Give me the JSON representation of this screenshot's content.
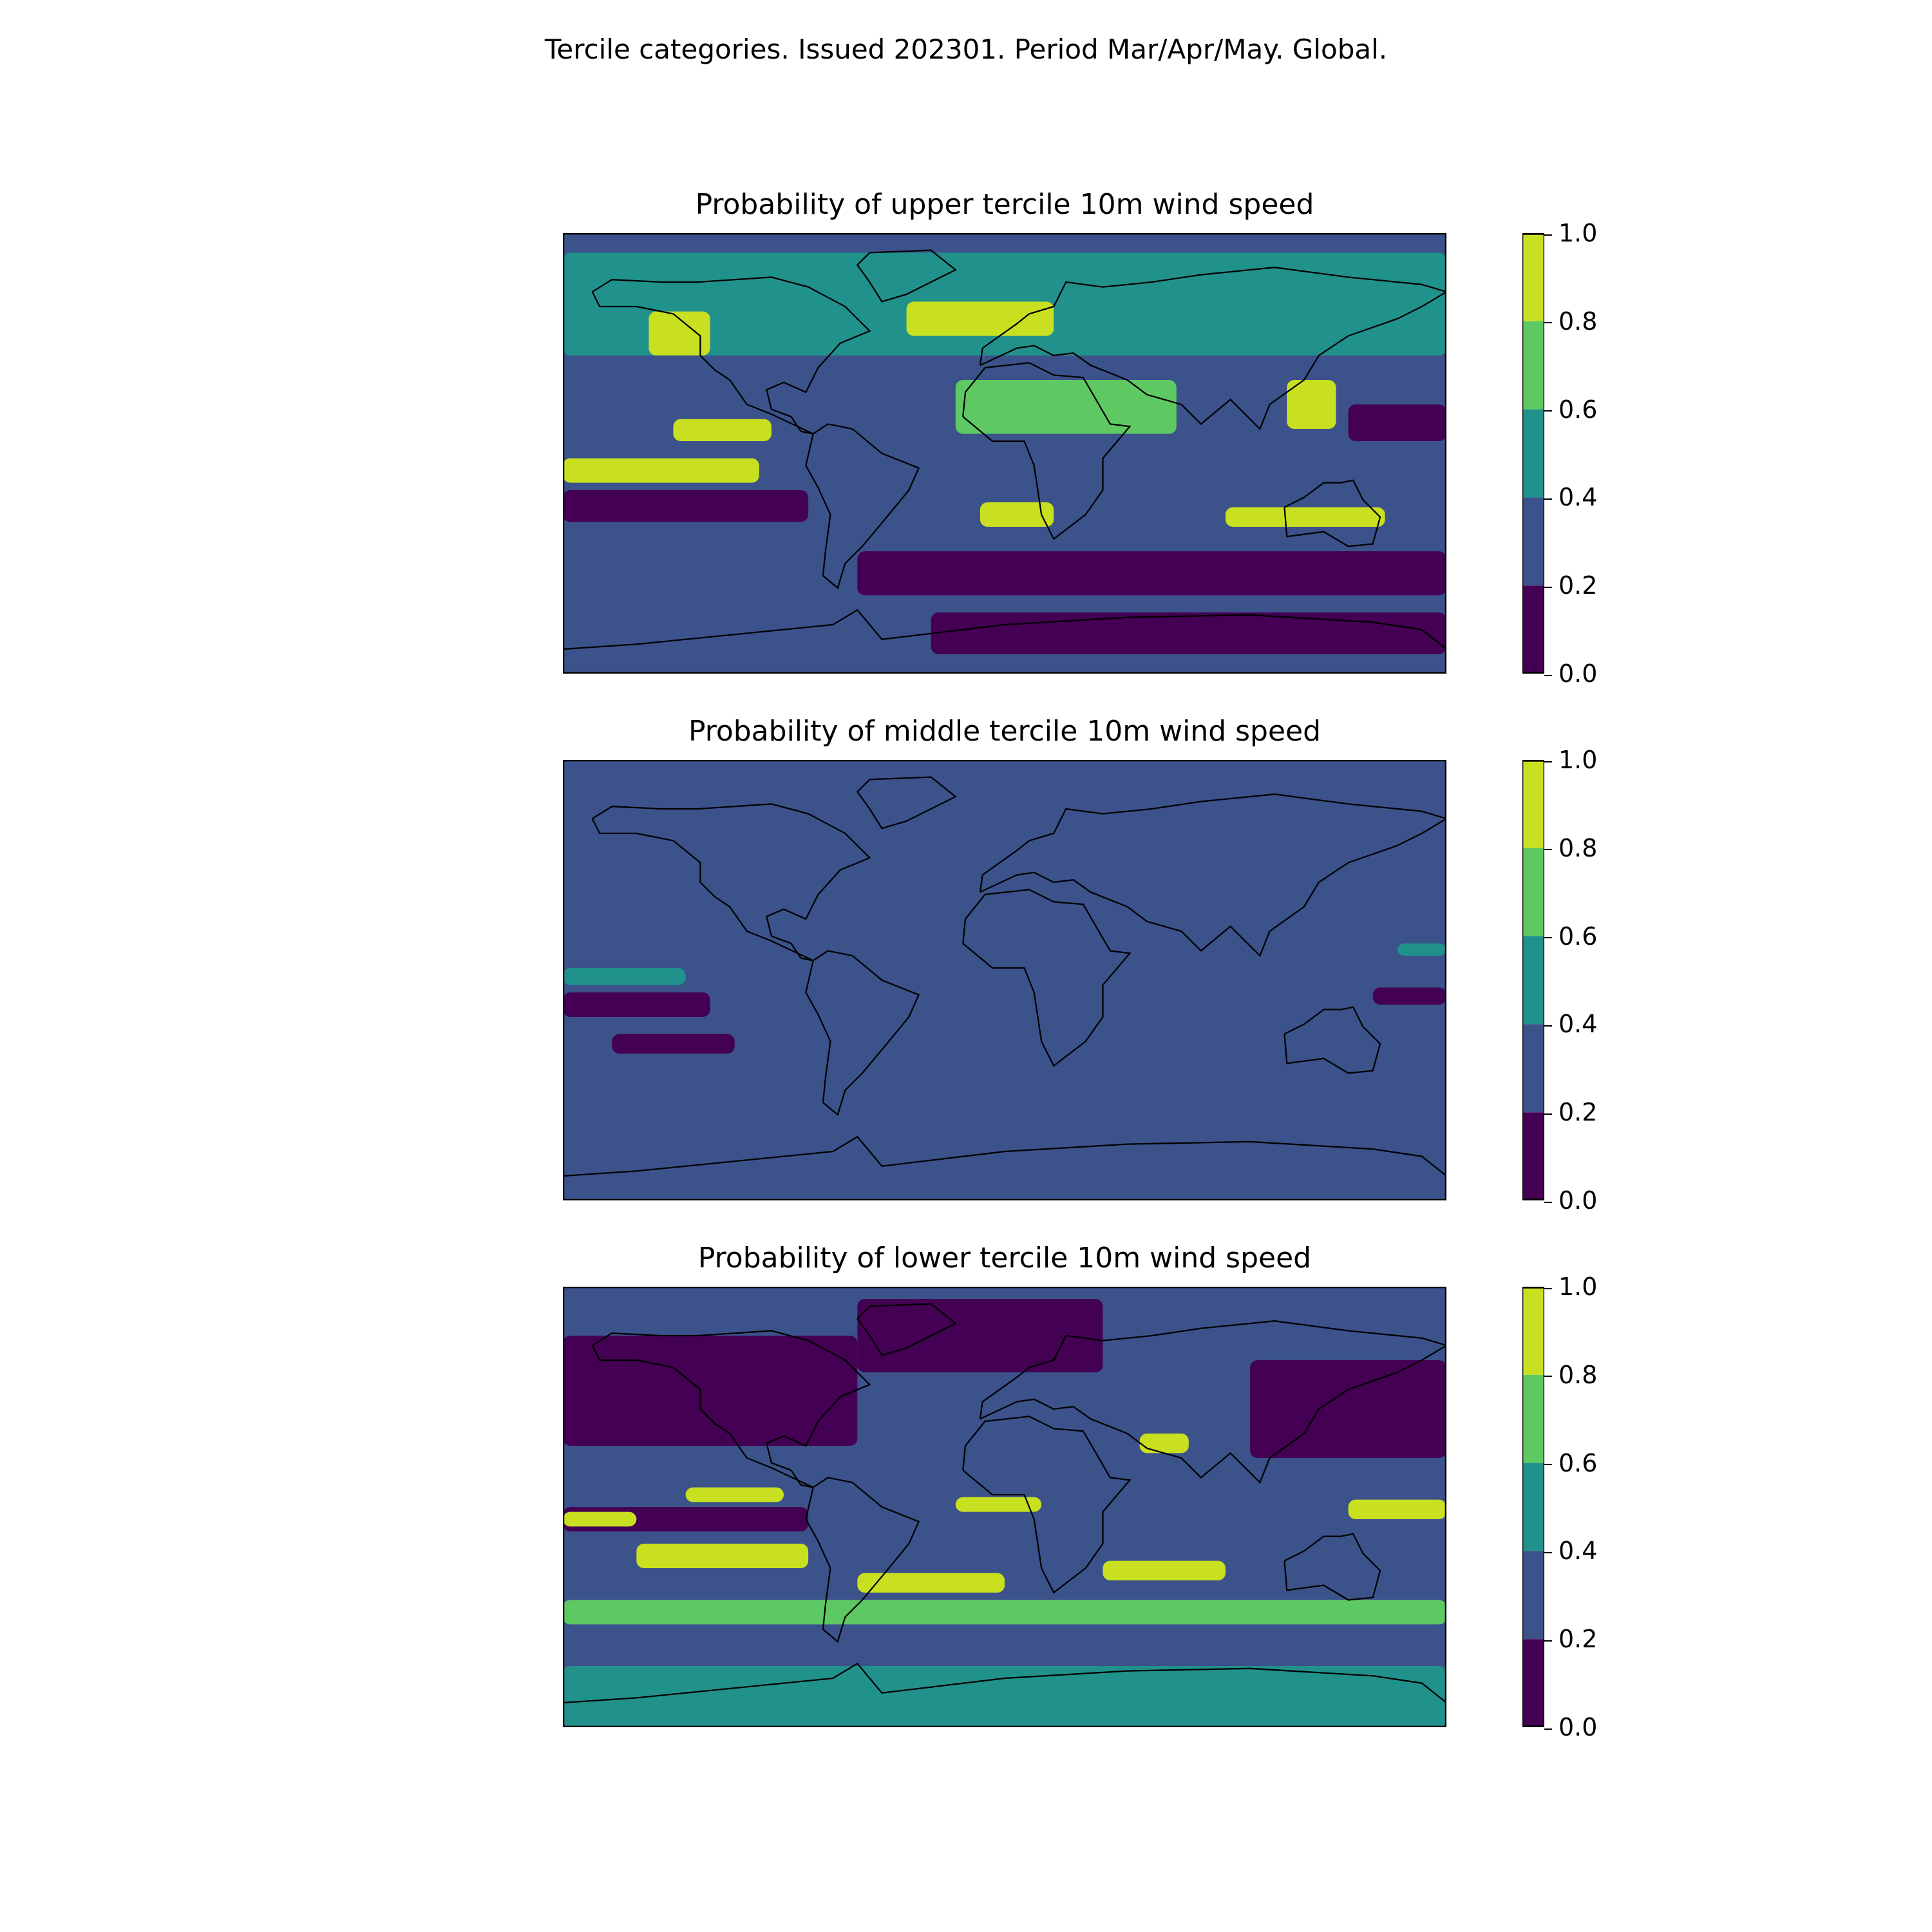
{
  "suptitle": "Tercile categories. Issued 202301. Period Mar/Apr/May. Global.",
  "colors": {
    "levels": [
      "#440154",
      "#3b528b",
      "#21918c",
      "#5ec962",
      "#c8e020"
    ],
    "coast": "#000000"
  },
  "colorbar_ticks": [
    "0.0",
    "0.2",
    "0.4",
    "0.6",
    "0.8",
    "1.0"
  ],
  "panels": [
    {
      "key": "upper",
      "title": "Probability of upper tercile 10m wind speed",
      "background_level": 1
    },
    {
      "key": "middle",
      "title": "Probability of middle tercile 10m wind speed",
      "background_level": 1
    },
    {
      "key": "lower",
      "title": "Probability of lower tercile 10m wind speed",
      "background_level": 1
    }
  ],
  "chart_data": {
    "type": "heatmap",
    "projection": "PlateCarree",
    "extent_lon": [
      -180,
      180
    ],
    "extent_lat": [
      -90,
      90
    ],
    "levels": [
      0.0,
      0.2,
      0.4,
      0.6,
      0.8,
      1.0
    ],
    "colormap": "viridis",
    "panels": [
      {
        "name": "Probability of upper tercile 10m wind speed",
        "regions": [
          {
            "level": 2,
            "lon": [
              -180,
              180
            ],
            "lat": [
              40,
              82
            ]
          },
          {
            "level": 4,
            "lon": [
              -145,
              -120
            ],
            "lat": [
              40,
              58
            ]
          },
          {
            "level": 4,
            "lon": [
              -40,
              20
            ],
            "lat": [
              48,
              62
            ]
          },
          {
            "level": 4,
            "lon": [
              -135,
              -95
            ],
            "lat": [
              5,
              14
            ]
          },
          {
            "level": 4,
            "lon": [
              -180,
              -100
            ],
            "lat": [
              -12,
              -2
            ]
          },
          {
            "level": 4,
            "lon": [
              -10,
              20
            ],
            "lat": [
              -30,
              -20
            ]
          },
          {
            "level": 4,
            "lon": [
              90,
              155
            ],
            "lat": [
              -30,
              -22
            ]
          },
          {
            "level": 4,
            "lon": [
              115,
              135
            ],
            "lat": [
              10,
              30
            ]
          },
          {
            "level": 3,
            "lon": [
              -20,
              70
            ],
            "lat": [
              8,
              30
            ]
          },
          {
            "level": 0,
            "lon": [
              -180,
              -80
            ],
            "lat": [
              -28,
              -15
            ]
          },
          {
            "level": 0,
            "lon": [
              -60,
              180
            ],
            "lat": [
              -58,
              -40
            ]
          },
          {
            "level": 0,
            "lon": [
              140,
              180
            ],
            "lat": [
              5,
              20
            ]
          },
          {
            "level": 0,
            "lon": [
              -30,
              180
            ],
            "lat": [
              -82,
              -65
            ]
          }
        ]
      },
      {
        "name": "Probability of middle tercile 10m wind speed",
        "regions": [
          {
            "level": 2,
            "lon": [
              -180,
              -130
            ],
            "lat": [
              -2,
              5
            ]
          },
          {
            "level": 0,
            "lon": [
              -180,
              -120
            ],
            "lat": [
              -15,
              -5
            ]
          },
          {
            "level": 0,
            "lon": [
              -160,
              -110
            ],
            "lat": [
              -30,
              -22
            ]
          },
          {
            "level": 0,
            "lon": [
              150,
              180
            ],
            "lat": [
              -10,
              -3
            ]
          },
          {
            "level": 2,
            "lon": [
              160,
              180
            ],
            "lat": [
              10,
              15
            ]
          }
        ]
      },
      {
        "name": "Probability of lower tercile 10m wind speed",
        "regions": [
          {
            "level": 0,
            "lon": [
              -180,
              -60
            ],
            "lat": [
              25,
              70
            ]
          },
          {
            "level": 0,
            "lon": [
              -60,
              40
            ],
            "lat": [
              55,
              85
            ]
          },
          {
            "level": 0,
            "lon": [
              -180,
              -80
            ],
            "lat": [
              -10,
              0
            ]
          },
          {
            "level": 0,
            "lon": [
              100,
              180
            ],
            "lat": [
              20,
              60
            ]
          },
          {
            "level": 4,
            "lon": [
              -130,
              -90
            ],
            "lat": [
              2,
              8
            ]
          },
          {
            "level": 4,
            "lon": [
              -20,
              15
            ],
            "lat": [
              -2,
              4
            ]
          },
          {
            "level": 4,
            "lon": [
              140,
              180
            ],
            "lat": [
              -5,
              3
            ]
          },
          {
            "level": 4,
            "lon": [
              -180,
              -150
            ],
            "lat": [
              -8,
              -2
            ]
          },
          {
            "level": 4,
            "lon": [
              -150,
              -80
            ],
            "lat": [
              -25,
              -15
            ]
          },
          {
            "level": 4,
            "lon": [
              -60,
              0
            ],
            "lat": [
              -35,
              -27
            ]
          },
          {
            "level": 4,
            "lon": [
              40,
              90
            ],
            "lat": [
              -30,
              -22
            ]
          },
          {
            "level": 4,
            "lon": [
              55,
              75
            ],
            "lat": [
              22,
              30
            ]
          },
          {
            "level": 3,
            "lon": [
              -180,
              180
            ],
            "lat": [
              -48,
              -38
            ]
          },
          {
            "level": 2,
            "lon": [
              -180,
              180
            ],
            "lat": [
              -90,
              -65
            ]
          }
        ]
      }
    ]
  }
}
